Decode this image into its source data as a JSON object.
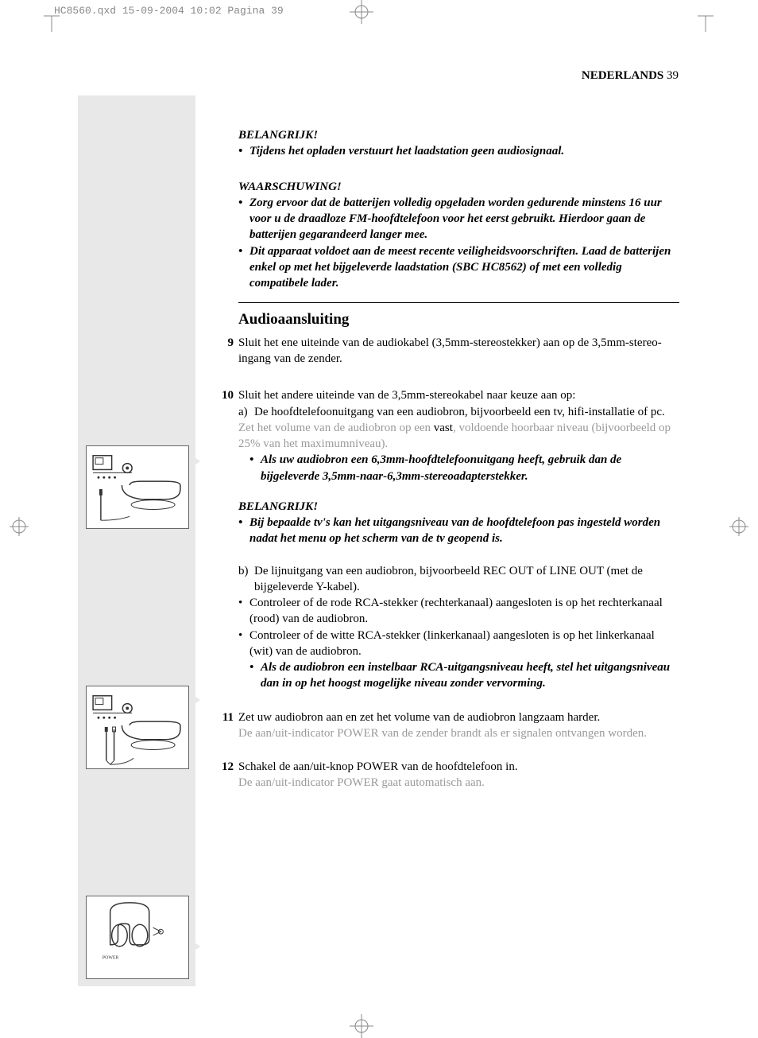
{
  "header_info": "HC8560.qxd  15-09-2004  10:02  Pagina 39",
  "page_header": {
    "language": "NEDERLANDS",
    "page_num": "39"
  },
  "belangrijk1_title": "BELANGRIJK!",
  "belangrijk1_bullet": "Tijdens het opladen verstuurt het laadstation geen audiosignaal.",
  "waarschuwing_title": "WAARSCHUWING!",
  "waarschuwing_b1": "Zorg ervoor dat de batterijen volledig opgeladen worden gedurende minstens 16 uur voor u de draadloze FM-hoofdtelefoon voor het eerst gebruikt. Hierdoor gaan de batterijen gegarandeerd langer mee.",
  "waarschuwing_b2": "Dit apparaat voldoet aan de meest recente veiligheidsvoorschriften. Laad de batterijen enkel op met het bijgeleverde laadstation (SBC HC8562) of met een volledig compatibele lader.",
  "section_title": "Audioaansluiting",
  "step9_num": "9",
  "step9_text": "Sluit het ene uiteinde van de audiokabel (3,5mm-stereostekker) aan op de 3,5mm-stereo-ingang van de zender.",
  "step10_num": "10",
  "step10_text": "Sluit het andere uiteinde van de 3,5mm-stereokabel naar keuze aan op:",
  "step10_a": "De hoofdtelefoonuitgang van een audiobron, bijvoorbeeld een tv, hifi-installatie of pc.",
  "step10_gray_prefix": "Zet het volume van de audiobron op een ",
  "step10_gray_bold": "vast",
  "step10_gray_suffix": ", voldoende hoorbaar niveau (bijvoorbeeld op 25% van het maximumniveau).",
  "step10_extra": "Als uw audiobron een 6,3mm-hoofdtelefoonuitgang heeft, gebruik dan de bijgeleverde 3,5mm-naar-6,3mm-stereoadapterstekker.",
  "belangrijk2_title": "BELANGRIJK!",
  "belangrijk2_bullet": "Bij bepaalde tv's kan het uitgangsniveau van de hoofdtelefoon pas ingesteld worden nadat het menu op het scherm van de tv geopend is.",
  "step10_b": "De lijnuitgang van een audiobron, bijvoorbeeld REC OUT of LINE OUT (met de bijgeleverde Y-kabel).",
  "step10_c1": "Controleer of de rode RCA-stekker (rechterkanaal) aangesloten is op het rechterkanaal (rood) van de audiobron.",
  "step10_c2": "Controleer of de witte RCA-stekker (linkerkanaal) aangesloten is op het linkerkanaal (wit) van de audiobron.",
  "step10_rca_extra": "Als de audiobron een instelbaar RCA-uitgangsniveau heeft, stel het uitgangsniveau dan in op het hoogst mogelijke niveau zonder vervorming.",
  "step11_num": "11",
  "step11_text": "Zet uw audiobron aan en zet het volume van de audiobron langzaam harder.",
  "step11_gray": "De aan/uit-indicator POWER van de zender brandt als er signalen ontvangen worden.",
  "step12_num": "12",
  "step12_text": "Schakel de aan/uit-knop POWER van de hoofdtelefoon in.",
  "step12_gray": "De aan/uit-indicator POWER gaat automatisch aan.",
  "illus": {
    "top1": 560,
    "top2": 862,
    "top3": 1126
  },
  "triangles": {
    "t1": 570,
    "t2": 870,
    "t3": 1180
  }
}
